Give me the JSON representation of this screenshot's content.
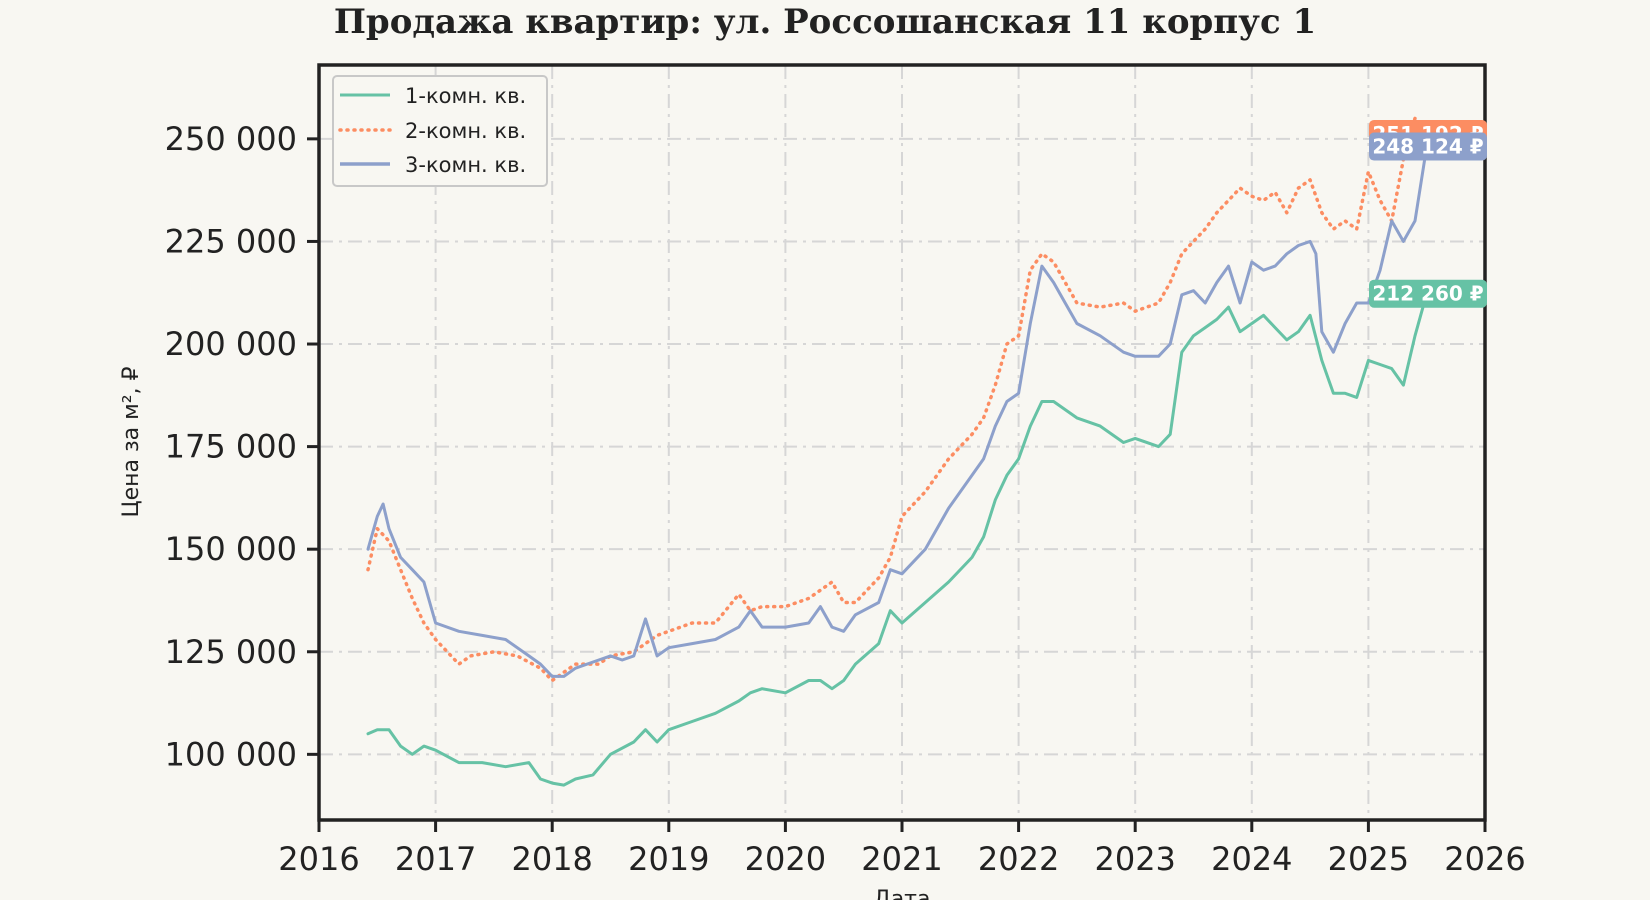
{
  "chart_data": {
    "type": "line",
    "title": "Продажа квартир: ул. Россошанская 11 корпус 1",
    "xlabel": "Дата",
    "ylabel": "Цена за м², ₽",
    "xlim": [
      2016.0,
      2026.0
    ],
    "ylim": [
      84000,
      268000
    ],
    "x_ticks": [
      2016,
      2017,
      2018,
      2019,
      2020,
      2021,
      2022,
      2023,
      2024,
      2025,
      2026
    ],
    "x_tick_labels": [
      "2016",
      "2017",
      "2018",
      "2019",
      "2020",
      "2021",
      "2022",
      "2023",
      "2024",
      "2025",
      "2026"
    ],
    "y_ticks": [
      100000,
      125000,
      150000,
      175000,
      200000,
      225000,
      250000
    ],
    "y_tick_labels": [
      "100 000",
      "125 000",
      "150 000",
      "175 000",
      "200 000",
      "225 000",
      "250 000"
    ],
    "grid": true,
    "legend_position": "top-left",
    "series": [
      {
        "name": "1-комн. кв.",
        "color": "#66c2a5",
        "style": "solid",
        "end_label": "212 260 ₽",
        "x": [
          2016.42,
          2016.5,
          2016.6,
          2016.7,
          2016.8,
          2016.9,
          2017.0,
          2017.2,
          2017.4,
          2017.6,
          2017.8,
          2017.9,
          2018.0,
          2018.1,
          2018.2,
          2018.35,
          2018.5,
          2018.7,
          2018.8,
          2018.9,
          2019.0,
          2019.2,
          2019.4,
          2019.6,
          2019.7,
          2019.8,
          2020.0,
          2020.2,
          2020.3,
          2020.4,
          2020.5,
          2020.6,
          2020.8,
          2020.9,
          2021.0,
          2021.2,
          2021.4,
          2021.6,
          2021.7,
          2021.8,
          2021.9,
          2022.0,
          2022.1,
          2022.2,
          2022.3,
          2022.5,
          2022.7,
          2022.9,
          2023.0,
          2023.2,
          2023.3,
          2023.4,
          2023.5,
          2023.6,
          2023.7,
          2023.8,
          2023.9,
          2024.0,
          2024.1,
          2024.2,
          2024.3,
          2024.4,
          2024.5,
          2024.6,
          2024.7,
          2024.8,
          2024.9,
          2025.0,
          2025.1,
          2025.2,
          2025.3,
          2025.4,
          2025.5
        ],
        "y": [
          105000,
          106000,
          106000,
          102000,
          100000,
          102000,
          101000,
          98000,
          98000,
          97000,
          98000,
          94000,
          93000,
          92500,
          94000,
          95000,
          100000,
          103000,
          106000,
          103000,
          106000,
          108000,
          110000,
          113000,
          115000,
          116000,
          115000,
          118000,
          118000,
          116000,
          118000,
          122000,
          127000,
          135000,
          132000,
          137000,
          142000,
          148000,
          153000,
          162000,
          168000,
          172000,
          180000,
          186000,
          186000,
          182000,
          180000,
          176000,
          177000,
          175000,
          178000,
          198000,
          202000,
          204000,
          206000,
          209000,
          203000,
          205000,
          207000,
          204000,
          201000,
          203000,
          207000,
          196000,
          188000,
          188000,
          187000,
          196000,
          195000,
          194000,
          190000,
          202000,
          212260
        ]
      },
      {
        "name": "2-комн. кв.",
        "color": "#fc8d62",
        "style": "dotted",
        "end_label": "251 192 ₽",
        "x": [
          2016.42,
          2016.5,
          2016.6,
          2016.7,
          2016.8,
          2016.9,
          2017.0,
          2017.2,
          2017.3,
          2017.5,
          2017.7,
          2017.9,
          2018.0,
          2018.2,
          2018.4,
          2018.5,
          2018.7,
          2018.9,
          2019.0,
          2019.2,
          2019.4,
          2019.6,
          2019.7,
          2019.8,
          2020.0,
          2020.2,
          2020.3,
          2020.4,
          2020.5,
          2020.6,
          2020.7,
          2020.8,
          2020.9,
          2021.0,
          2021.2,
          2021.4,
          2021.6,
          2021.7,
          2021.8,
          2021.9,
          2022.0,
          2022.1,
          2022.2,
          2022.3,
          2022.5,
          2022.7,
          2022.9,
          2023.0,
          2023.2,
          2023.3,
          2023.4,
          2023.5,
          2023.6,
          2023.7,
          2023.8,
          2023.9,
          2024.0,
          2024.1,
          2024.2,
          2024.3,
          2024.4,
          2024.5,
          2024.6,
          2024.7,
          2024.8,
          2024.9,
          2025.0,
          2025.1,
          2025.2,
          2025.3,
          2025.4,
          2025.5
        ],
        "y": [
          145000,
          155000,
          152000,
          145000,
          138000,
          132000,
          128000,
          122000,
          124000,
          125000,
          124000,
          121000,
          118000,
          122000,
          122000,
          124000,
          125000,
          129000,
          130000,
          132000,
          132000,
          139000,
          135000,
          136000,
          136000,
          138000,
          140000,
          142000,
          137000,
          137000,
          140000,
          143000,
          148000,
          158000,
          164000,
          172000,
          178000,
          182000,
          190000,
          200000,
          202000,
          218000,
          222000,
          220000,
          210000,
          209000,
          210000,
          208000,
          210000,
          215000,
          222000,
          225000,
          228000,
          232000,
          235000,
          238000,
          236000,
          235000,
          237000,
          232000,
          238000,
          240000,
          232000,
          228000,
          230000,
          228000,
          242000,
          235000,
          230000,
          245000,
          255000,
          251192
        ]
      },
      {
        "name": "3-комн. кв.",
        "color": "#8da0cb",
        "style": "solid",
        "end_label": "248 124 ₽",
        "x": [
          2016.42,
          2016.5,
          2016.55,
          2016.6,
          2016.7,
          2016.8,
          2016.9,
          2017.0,
          2017.2,
          2017.4,
          2017.6,
          2017.8,
          2017.9,
          2018.0,
          2018.1,
          2018.2,
          2018.4,
          2018.5,
          2018.6,
          2018.7,
          2018.8,
          2018.9,
          2019.0,
          2019.2,
          2019.4,
          2019.6,
          2019.7,
          2019.8,
          2020.0,
          2020.2,
          2020.3,
          2020.4,
          2020.5,
          2020.6,
          2020.8,
          2020.9,
          2021.0,
          2021.2,
          2021.4,
          2021.6,
          2021.7,
          2021.8,
          2021.9,
          2022.0,
          2022.1,
          2022.2,
          2022.3,
          2022.4,
          2022.5,
          2022.7,
          2022.9,
          2023.0,
          2023.2,
          2023.3,
          2023.4,
          2023.5,
          2023.6,
          2023.7,
          2023.8,
          2023.9,
          2024.0,
          2024.1,
          2024.2,
          2024.3,
          2024.4,
          2024.5,
          2024.55,
          2024.6,
          2024.7,
          2024.8,
          2024.9,
          2025.0,
          2025.1,
          2025.2,
          2025.3,
          2025.4,
          2025.5
        ],
        "y": [
          150000,
          158000,
          161000,
          155000,
          148000,
          145000,
          142000,
          132000,
          130000,
          129000,
          128000,
          124000,
          122000,
          119000,
          119000,
          121000,
          123000,
          124000,
          123000,
          124000,
          133000,
          124000,
          126000,
          127000,
          128000,
          131000,
          135000,
          131000,
          131000,
          132000,
          136000,
          131000,
          130000,
          134000,
          137000,
          145000,
          144000,
          150000,
          160000,
          168000,
          172000,
          180000,
          186000,
          188000,
          205000,
          219000,
          215000,
          210000,
          205000,
          202000,
          198000,
          197000,
          197000,
          200000,
          212000,
          213000,
          210000,
          215000,
          219000,
          210000,
          220000,
          218000,
          219000,
          222000,
          224000,
          225000,
          222000,
          203000,
          198000,
          205000,
          210000,
          210000,
          218000,
          230000,
          225000,
          230000,
          248124
        ]
      }
    ]
  }
}
